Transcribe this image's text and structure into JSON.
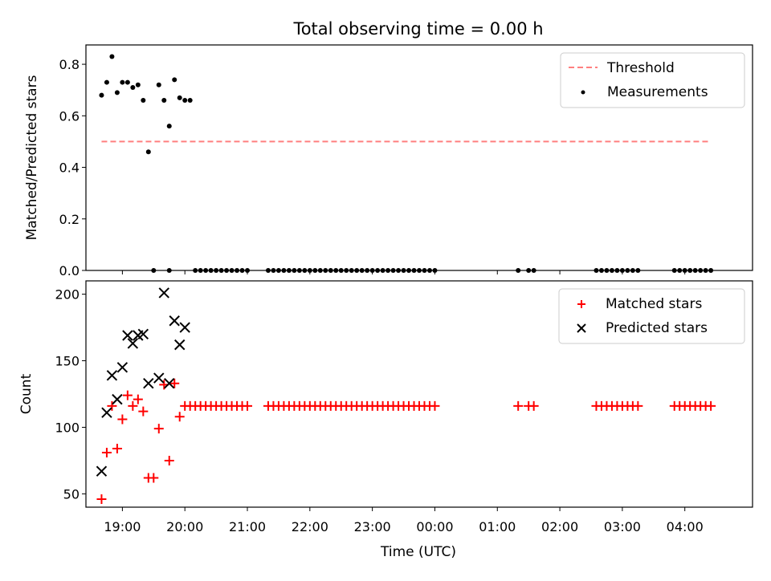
{
  "figure": {
    "title": "Total observing time = 0.00 h",
    "xlabel": "Time (UTC)"
  },
  "chart_data": [
    {
      "type": "scatter",
      "panel": "top",
      "ylabel": "Matched/Predicted stars",
      "ylim": [
        0,
        0.875
      ],
      "yticks": [
        0.0,
        0.2,
        0.4,
        0.6,
        0.8
      ],
      "ytick_labels": [
        "0.0",
        "0.2",
        "0.4",
        "0.6",
        "0.8"
      ],
      "xlim": [
        "18:25",
        "05:05"
      ],
      "xticks": [
        "19:00",
        "20:00",
        "21:00",
        "22:00",
        "23:00",
        "00:00",
        "01:00",
        "02:00",
        "03:00",
        "04:00"
      ],
      "xtick_labels": [
        "19:00",
        "20:00",
        "21:00",
        "22:00",
        "23:00",
        "00:00",
        "01:00",
        "02:00",
        "03:00",
        "04:00"
      ],
      "legend_position": "upper right",
      "threshold": {
        "name": "Threshold",
        "y": 0.5,
        "x_range": [
          "18:40",
          "04:25"
        ],
        "color": "#ff7f7f",
        "style": "dashed"
      },
      "series": [
        {
          "name": "Measurements",
          "color": "#000000",
          "marker": "dot",
          "x": [
            "18:40",
            "18:45",
            "18:50",
            "18:55",
            "19:00",
            "19:05",
            "19:10",
            "19:15",
            "19:20",
            "19:25",
            "19:30",
            "19:35",
            "19:40",
            "19:45",
            "19:50",
            "19:55",
            "20:00",
            "20:05"
          ],
          "y": [
            0.68,
            0.73,
            0.83,
            0.69,
            0.73,
            0.73,
            0.71,
            0.72,
            0.66,
            0.46,
            0.0,
            0.72,
            0.66,
            0.56,
            0.74,
            0.67,
            0.66,
            0.66
          ]
        },
        {
          "name": "",
          "color": "#000000",
          "marker": "dot",
          "x": [
            "19:45"
          ],
          "y": [
            0.0
          ]
        },
        {
          "name": "",
          "color": "#000000",
          "marker": "dot",
          "x": [
            "20:10",
            "20:15",
            "20:20",
            "20:25",
            "20:30",
            "20:35",
            "20:40",
            "20:45",
            "20:50",
            "20:55",
            "21:00",
            "21:20",
            "21:25",
            "21:30",
            "21:35",
            "21:40",
            "21:45",
            "21:50",
            "21:55",
            "22:00",
            "22:05",
            "22:10",
            "22:15",
            "22:20",
            "22:25",
            "22:30",
            "22:35",
            "22:40",
            "22:45",
            "22:50",
            "22:55",
            "23:00",
            "23:05",
            "23:10",
            "23:15",
            "23:20",
            "23:25",
            "23:30",
            "23:35",
            "23:40",
            "23:45",
            "23:50",
            "23:55",
            "00:00",
            "01:20",
            "01:30",
            "01:35",
            "02:35",
            "02:40",
            "02:45",
            "02:50",
            "02:55",
            "03:00",
            "03:05",
            "03:10",
            "03:15",
            "03:50",
            "03:55",
            "04:00",
            "04:05",
            "04:10",
            "04:15",
            "04:20",
            "04:25"
          ],
          "y": [
            0,
            0,
            0,
            0,
            0,
            0,
            0,
            0,
            0,
            0,
            0,
            0,
            0,
            0,
            0,
            0,
            0,
            0,
            0,
            0,
            0,
            0,
            0,
            0,
            0,
            0,
            0,
            0,
            0,
            0,
            0,
            0,
            0,
            0,
            0,
            0,
            0,
            0,
            0,
            0,
            0,
            0,
            0,
            0,
            0,
            0,
            0,
            0,
            0,
            0,
            0,
            0,
            0,
            0,
            0,
            0,
            0,
            0,
            0,
            0,
            0,
            0,
            0,
            0
          ]
        }
      ]
    },
    {
      "type": "scatter",
      "panel": "bottom",
      "ylabel": "Count",
      "ylim": [
        40,
        210
      ],
      "yticks": [
        50,
        100,
        150,
        200
      ],
      "ytick_labels": [
        "50",
        "100",
        "150",
        "200"
      ],
      "xlim": [
        "18:25",
        "05:05"
      ],
      "xticks": [
        "19:00",
        "20:00",
        "21:00",
        "22:00",
        "23:00",
        "00:00",
        "01:00",
        "02:00",
        "03:00",
        "04:00"
      ],
      "xtick_labels": [
        "19:00",
        "20:00",
        "21:00",
        "22:00",
        "23:00",
        "00:00",
        "01:00",
        "02:00",
        "03:00",
        "04:00"
      ],
      "legend_position": "upper right",
      "series": [
        {
          "name": "Matched stars",
          "color": "#ff0000",
          "marker": "plus",
          "x": [
            "18:40",
            "18:45",
            "18:50",
            "18:55",
            "19:00",
            "19:05",
            "19:10",
            "19:15",
            "19:20",
            "19:25",
            "19:30",
            "19:35",
            "19:40",
            "19:45",
            "19:50",
            "19:55",
            "20:00",
            "20:05",
            "20:10",
            "20:15",
            "20:20",
            "20:25",
            "20:30",
            "20:35",
            "20:40",
            "20:45",
            "20:50",
            "20:55",
            "21:00",
            "21:20",
            "21:25",
            "21:30",
            "21:35",
            "21:40",
            "21:45",
            "21:50",
            "21:55",
            "22:00",
            "22:05",
            "22:10",
            "22:15",
            "22:20",
            "22:25",
            "22:30",
            "22:35",
            "22:40",
            "22:45",
            "22:50",
            "22:55",
            "23:00",
            "23:05",
            "23:10",
            "23:15",
            "23:20",
            "23:25",
            "23:30",
            "23:35",
            "23:40",
            "23:45",
            "23:50",
            "23:55",
            "00:00",
            "01:20",
            "01:30",
            "01:35",
            "02:35",
            "02:40",
            "02:45",
            "02:50",
            "02:55",
            "03:00",
            "03:05",
            "03:10",
            "03:15",
            "03:50",
            "03:55",
            "04:00",
            "04:05",
            "04:10",
            "04:15",
            "04:20",
            "04:25"
          ],
          "y": [
            46,
            81,
            116,
            84,
            106,
            124,
            116,
            121,
            112,
            62,
            62,
            99,
            132,
            75,
            133,
            108,
            116,
            116,
            116,
            116,
            116,
            116,
            116,
            116,
            116,
            116,
            116,
            116,
            116,
            116,
            116,
            116,
            116,
            116,
            116,
            116,
            116,
            116,
            116,
            116,
            116,
            116,
            116,
            116,
            116,
            116,
            116,
            116,
            116,
            116,
            116,
            116,
            116,
            116,
            116,
            116,
            116,
            116,
            116,
            116,
            116,
            116,
            116,
            116,
            116,
            116,
            116,
            116,
            116,
            116,
            116,
            116,
            116,
            116,
            116,
            116,
            116,
            116,
            116,
            116,
            116,
            116
          ]
        },
        {
          "name": "Predicted stars",
          "color": "#000000",
          "marker": "x",
          "x": [
            "18:40",
            "18:45",
            "18:50",
            "18:55",
            "19:00",
            "19:05",
            "19:10",
            "19:15",
            "19:20",
            "19:25",
            "19:35",
            "19:40",
            "19:45",
            "19:50",
            "19:55",
            "20:00"
          ],
          "y": [
            67,
            111,
            139,
            121,
            145,
            169,
            163,
            169,
            170,
            133,
            137,
            201,
            133,
            180,
            162,
            175
          ]
        }
      ]
    }
  ]
}
